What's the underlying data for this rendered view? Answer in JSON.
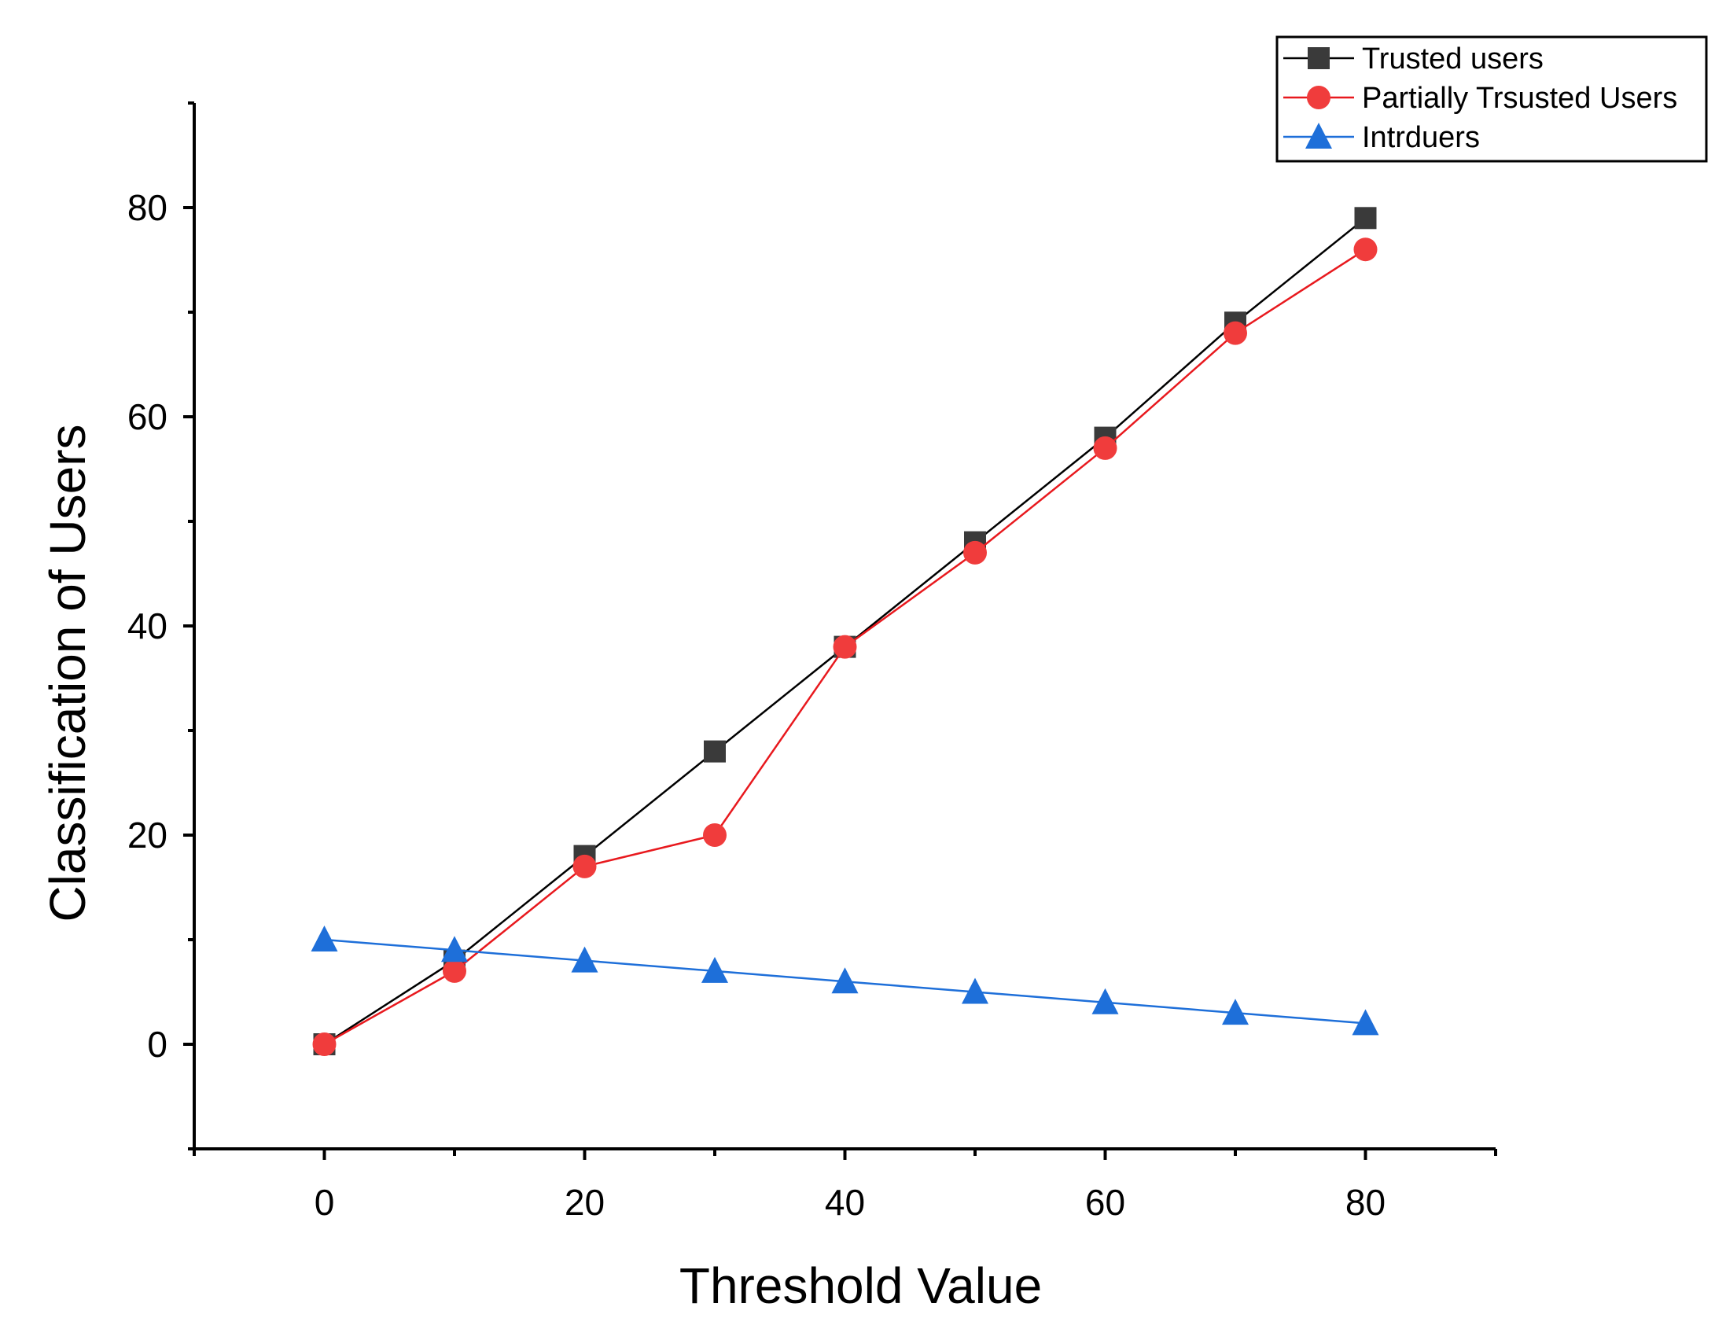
{
  "chart_data": {
    "type": "line",
    "xlabel": "Threshold Value",
    "ylabel": "Classification of Users",
    "xlim": [
      -10,
      90
    ],
    "ylim": [
      -10,
      90
    ],
    "x_ticks": [
      0,
      20,
      40,
      60,
      80
    ],
    "y_ticks": [
      0,
      20,
      40,
      60,
      80
    ],
    "x_minor_ticks": [
      -10,
      10,
      30,
      50,
      70,
      90
    ],
    "y_minor_ticks": [
      -10,
      10,
      30,
      50,
      70,
      90
    ],
    "x": [
      0,
      10,
      20,
      30,
      40,
      50,
      60,
      70,
      80
    ],
    "legend_position": "top-right",
    "series": [
      {
        "name": "Trusted users",
        "marker": "square",
        "color": "#3a3a3a",
        "line_color": "#000000",
        "values": [
          0,
          8,
          18,
          28,
          38,
          48,
          58,
          69,
          79
        ]
      },
      {
        "name": "Partially Trsusted Users",
        "marker": "circle",
        "color": "#f03c3c",
        "line_color": "#e8191e",
        "values": [
          0,
          7,
          17,
          20,
          38,
          47,
          57,
          68,
          76
        ]
      },
      {
        "name": "Intrduers",
        "marker": "triangle",
        "color": "#1e6fd9",
        "line_color": "#1e6fd9",
        "values": [
          10,
          9,
          8,
          7,
          6,
          5,
          4,
          3,
          2
        ]
      }
    ]
  }
}
